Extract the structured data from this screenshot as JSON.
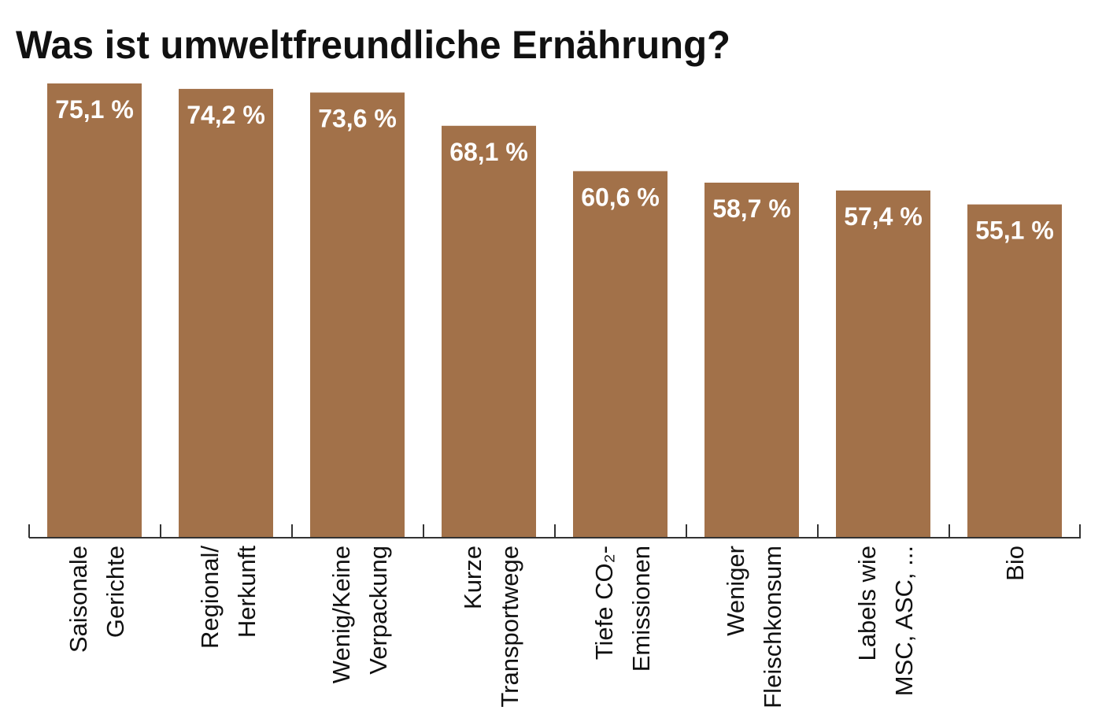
{
  "chart_data": {
    "type": "bar",
    "title": "Was ist umweltfreundliche Ernährung?",
    "categories": [
      [
        "Saisonale",
        "Gerichte"
      ],
      [
        "Regional/",
        "Herkunft"
      ],
      [
        "Wenig/Keine",
        "Verpackung"
      ],
      [
        "Kurze",
        "Transportwege"
      ],
      [
        "Tiefe CO₂-",
        "Emissionen"
      ],
      [
        "Weniger",
        "Fleischkonsum"
      ],
      [
        "Labels wie",
        "MSC, ASC, ..."
      ],
      [
        "Bio"
      ]
    ],
    "values": [
      75.1,
      74.2,
      73.6,
      68.1,
      60.6,
      58.7,
      57.4,
      55.1
    ],
    "value_labels": [
      "75,1 %",
      "74,2 %",
      "73,6 %",
      "68,1 %",
      "60,6 %",
      "58,7 %",
      "57,4 %",
      "55,1 %"
    ],
    "xlabel": "",
    "ylabel": "",
    "ylim": [
      0,
      75.1
    ],
    "grid": false,
    "colors": {
      "bar": "#A27149",
      "axis": "#333333",
      "label": "#ffffff"
    }
  }
}
